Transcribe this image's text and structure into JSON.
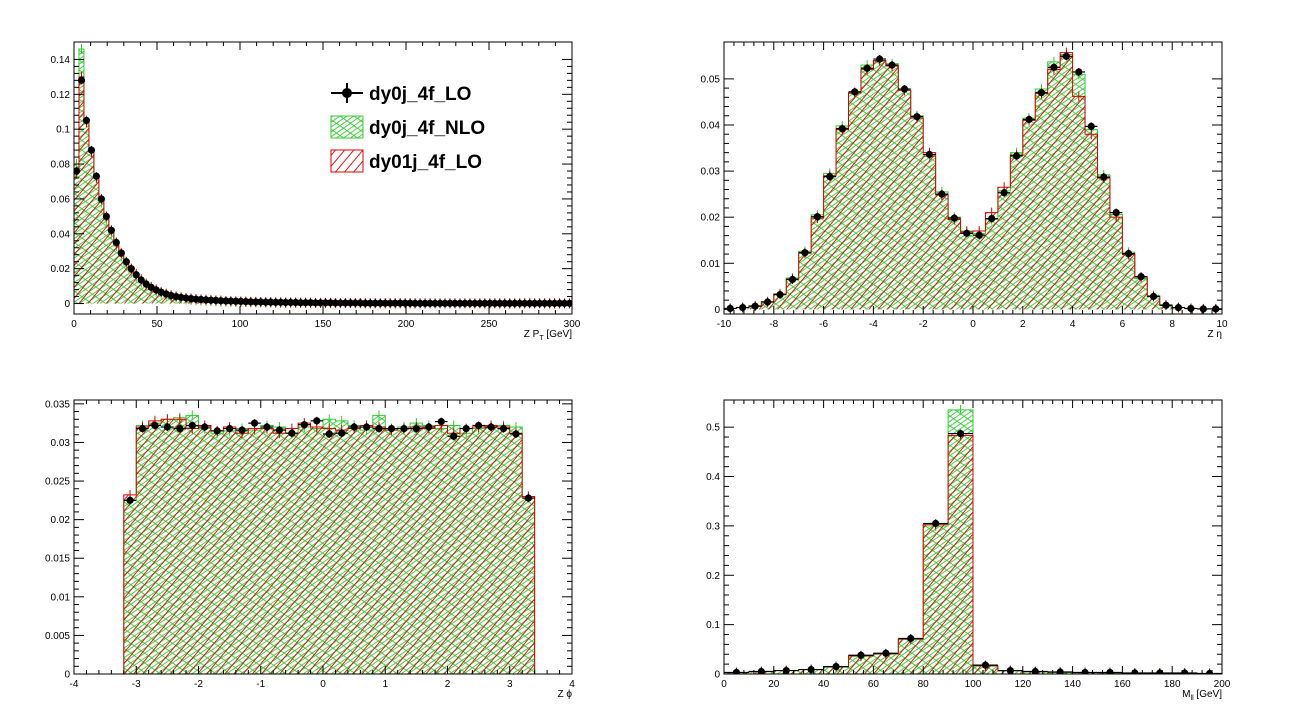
{
  "colors": {
    "lo": "#000000",
    "nlo": "#33cc33",
    "lo01": "#dd0000",
    "frame": "#000000"
  },
  "legend": {
    "entries": [
      {
        "label": "dy0j_4f_LO",
        "style": "marker"
      },
      {
        "label": "dy0j_4f_NLO",
        "style": "hatch-green"
      },
      {
        "label": "dy01j_4f_LO",
        "style": "hatch-red"
      }
    ]
  },
  "chart_data": [
    {
      "type": "histogram",
      "xlabel": "Z P",
      "xlabel_sub": "T",
      "xlabel_unit": " [GeV]",
      "xlim": [
        0,
        300
      ],
      "ylim": [
        -0.006,
        0.15
      ],
      "xticks": [
        0,
        50,
        100,
        150,
        200,
        250,
        300
      ],
      "yticks": [
        0,
        0.02,
        0.04,
        0.06,
        0.08,
        0.1,
        0.12,
        0.14
      ],
      "bin_edges_start": 0,
      "bin_width": 3,
      "series": [
        {
          "name": "dy0j_4f_LO",
          "values": [
            0.076,
            0.128,
            0.105,
            0.088,
            0.073,
            0.06,
            0.05,
            0.042,
            0.035,
            0.029,
            0.024,
            0.02,
            0.0165,
            0.0135,
            0.0112,
            0.0093,
            0.0078,
            0.0065,
            0.0055,
            0.0046,
            0.004,
            0.0035,
            0.0031,
            0.0028,
            0.0025,
            0.0023,
            0.0021,
            0.0019,
            0.0018,
            0.0016,
            0.0015,
            0.0014,
            0.0013,
            0.0012,
            0.0011,
            0.001,
            0.0009,
            0.0009,
            0.0008,
            0.0008,
            0.0007,
            0.0007,
            0.0006,
            0.0006,
            0.0006,
            0.0005,
            0.0005,
            0.0005,
            0.0004,
            0.0004,
            0.0004,
            0.0004,
            0.0003,
            0.0003,
            0.0003,
            0.0003,
            0.0003,
            0.0003,
            0.0002,
            0.0002,
            0.0002,
            0.0002,
            0.0002,
            0.0002,
            0.0002,
            0.0002,
            0.0002,
            0.0002,
            0.0001,
            0.0001,
            0.0001,
            0.0001,
            0.0001,
            0.0001,
            0.0001,
            0.0001,
            0.0001,
            0.0001,
            0.0001,
            0.0001,
            0.0001,
            0.0001,
            0.0001,
            0.0001,
            0.0001,
            0.0001,
            0.0001,
            0.0001,
            0.0001,
            0.0001,
            0.0001,
            0.0001,
            0.0001,
            0.0001,
            0.0001,
            0.0001,
            0.0001,
            0.0001,
            0.0001,
            0.0001
          ]
        },
        {
          "name": "dy0j_4f_NLO",
          "values": [
            0.08,
            0.146,
            0.105,
            0.087,
            0.072,
            0.058,
            0.048,
            0.04,
            0.033,
            0.027,
            0.022,
            0.018,
            0.015,
            0.012,
            0.01,
            0.0082,
            0.0068,
            0.0056,
            0.0047,
            0.0039,
            0.0033,
            0.0028,
            0.0024,
            0.0021,
            0.0019,
            0.0017,
            0.0015,
            0.0014,
            0.0012,
            0.0011,
            0.001,
            0.0009,
            0.0008,
            0.0008,
            0.0007,
            0.0007,
            0.0006,
            0.0006,
            0.0005,
            0.0005,
            0.0005,
            0.0004,
            0.0004,
            0.0004,
            0.0004,
            0.0003,
            0.0003,
            0.0003,
            0.0003,
            0.0003,
            0.0002,
            0.0002,
            0.0002,
            0.0002,
            0.0002,
            0.0002,
            0.0002,
            0.0002,
            0.0001,
            0.0001,
            0.0001,
            0.0001,
            0.0001,
            0.0001,
            0.0001,
            0.0001,
            0.0001,
            0.0001,
            0.0001,
            0.0001,
            0.0001,
            0.0001,
            0.0001,
            0.0001,
            0.0001,
            0.0001,
            0.0001,
            0.0001,
            0.0001,
            0.0001,
            0.0001,
            0.0001,
            0.0001,
            0.0001,
            0.0001,
            0.0001,
            0.0001,
            0.0001,
            0.0001,
            0.0001,
            0.0001,
            0.0001,
            0.0001,
            0.0001,
            0.0001,
            0.0001,
            0.0001,
            0.0001,
            0.0001,
            0.0001
          ]
        },
        {
          "name": "dy01j_4f_LO",
          "values": [
            0.075,
            0.13,
            0.104,
            0.087,
            0.072,
            0.06,
            0.05,
            0.042,
            0.035,
            0.029,
            0.024,
            0.02,
            0.017,
            0.014,
            0.0115,
            0.0096,
            0.008,
            0.0067,
            0.0057,
            0.0048,
            0.0041,
            0.0036,
            0.0032,
            0.0029,
            0.0026,
            0.0024,
            0.0022,
            0.002,
            0.0018,
            0.0017,
            0.0015,
            0.0014,
            0.0013,
            0.0012,
            0.0011,
            0.001,
            0.001,
            0.0009,
            0.0008,
            0.0008,
            0.0007,
            0.0007,
            0.0006,
            0.0006,
            0.0006,
            0.0005,
            0.0005,
            0.0005,
            0.0004,
            0.0004,
            0.0004,
            0.0004,
            0.0003,
            0.0003,
            0.0003,
            0.0003,
            0.0003,
            0.0003,
            0.0002,
            0.0002,
            0.0002,
            0.0002,
            0.0002,
            0.0002,
            0.0002,
            0.0002,
            0.0002,
            0.0002,
            0.0001,
            0.0001,
            0.0001,
            0.0001,
            0.0001,
            0.0001,
            0.0001,
            0.0001,
            0.0001,
            0.0001,
            0.0001,
            0.0001,
            0.0001,
            0.0001,
            0.0001,
            0.0001,
            0.0001,
            0.0001,
            0.0001,
            0.0001,
            0.0001,
            0.0001,
            0.0001,
            0.0001,
            0.0001,
            0.0001,
            0.0001,
            0.0001,
            0.0001,
            0.0001,
            0.0001,
            0.0001
          ]
        }
      ]
    },
    {
      "type": "histogram",
      "xlabel": "Z η",
      "xlabel_sub": "",
      "xlabel_unit": "",
      "xlim": [
        -10,
        10
      ],
      "ylim": [
        -0.001,
        0.058
      ],
      "xticks": [
        -10,
        -8,
        -6,
        -4,
        -2,
        0,
        2,
        4,
        6,
        8,
        10
      ],
      "yticks": [
        0,
        0.01,
        0.02,
        0.03,
        0.04,
        0.05
      ],
      "bin_edges_start": -10,
      "bin_width": 0.5,
      "series": [
        {
          "name": "dy0j_4f_LO",
          "values": [
            0.0002,
            0.0004,
            0.0007,
            0.0016,
            0.0032,
            0.0065,
            0.0123,
            0.0201,
            0.0288,
            0.0392,
            0.0472,
            0.0523,
            0.0543,
            0.053,
            0.0478,
            0.0418,
            0.0336,
            0.025,
            0.0198,
            0.0165,
            0.0161,
            0.0197,
            0.0253,
            0.0333,
            0.0412,
            0.047,
            0.0525,
            0.0549,
            0.0515,
            0.0397,
            0.0287,
            0.021,
            0.0121,
            0.0071,
            0.0028,
            0.0009,
            0.0004,
            0.0002,
            0.0001,
            0.0001
          ]
        },
        {
          "name": "dy0j_4f_NLO",
          "values": [
            0.0002,
            0.0004,
            0.0008,
            0.0017,
            0.0034,
            0.0068,
            0.0126,
            0.0205,
            0.0295,
            0.0398,
            0.0468,
            0.053,
            0.0538,
            0.0533,
            0.0476,
            0.042,
            0.0332,
            0.0255,
            0.02,
            0.017,
            0.0165,
            0.0195,
            0.0257,
            0.034,
            0.0415,
            0.0478,
            0.0537,
            0.0553,
            0.051,
            0.039,
            0.0292,
            0.0206,
            0.0124,
            0.0067,
            0.003,
            0.001,
            0.0004,
            0.0002,
            0.0001,
            0.0001
          ]
        },
        {
          "name": "dy01j_4f_LO",
          "values": [
            0.0002,
            0.0004,
            0.0007,
            0.0016,
            0.0033,
            0.0066,
            0.0122,
            0.0198,
            0.029,
            0.039,
            0.047,
            0.052,
            0.054,
            0.0528,
            0.0475,
            0.0415,
            0.034,
            0.0248,
            0.0195,
            0.0168,
            0.017,
            0.021,
            0.0265,
            0.0335,
            0.041,
            0.0468,
            0.052,
            0.0557,
            0.0462,
            0.038,
            0.0285,
            0.02,
            0.0119,
            0.007,
            0.0028,
            0.0009,
            0.0004,
            0.0002,
            0.0001,
            0.0001
          ]
        }
      ]
    },
    {
      "type": "histogram",
      "xlabel": "Z ϕ",
      "xlabel_sub": "",
      "xlabel_unit": "",
      "xlim": [
        -4,
        4
      ],
      "ylim": [
        0,
        0.0355
      ],
      "xticks": [
        -4,
        -3,
        -2,
        -1,
        0,
        1,
        2,
        3,
        4
      ],
      "yticks": [
        0,
        0.005,
        0.01,
        0.015,
        0.02,
        0.025,
        0.03,
        0.035
      ],
      "bin_edges_start": -3.2,
      "bin_width": 0.2,
      "series": [
        {
          "name": "dy0j_4f_LO",
          "values": [
            0.0225,
            0.0318,
            0.0322,
            0.032,
            0.0318,
            0.0322,
            0.032,
            0.0315,
            0.0318,
            0.0316,
            0.0325,
            0.032,
            0.0316,
            0.0312,
            0.0323,
            0.0328,
            0.0311,
            0.0312,
            0.032,
            0.032,
            0.0318,
            0.0318,
            0.0318,
            0.0318,
            0.032,
            0.0327,
            0.0308,
            0.0318,
            0.0322,
            0.032,
            0.0318,
            0.0311,
            0.0228
          ]
        },
        {
          "name": "dy0j_4f_NLO",
          "values": [
            0.0225,
            0.0322,
            0.0325,
            0.033,
            0.0332,
            0.0335,
            0.0318,
            0.0312,
            0.0315,
            0.0318,
            0.0316,
            0.0322,
            0.032,
            0.0312,
            0.032,
            0.0318,
            0.033,
            0.0328,
            0.0322,
            0.0316,
            0.0335,
            0.0318,
            0.032,
            0.0325,
            0.0322,
            0.0318,
            0.0322,
            0.0312,
            0.0318,
            0.032,
            0.0322,
            0.032,
            0.023
          ]
        },
        {
          "name": "dy01j_4f_LO",
          "values": [
            0.0232,
            0.032,
            0.0328,
            0.033,
            0.033,
            0.0318,
            0.0322,
            0.0315,
            0.032,
            0.0312,
            0.0318,
            0.0318,
            0.0312,
            0.0318,
            0.0325,
            0.032,
            0.0318,
            0.0316,
            0.0318,
            0.0322,
            0.032,
            0.0316,
            0.0318,
            0.032,
            0.0318,
            0.0322,
            0.0312,
            0.0318,
            0.032,
            0.0322,
            0.032,
            0.0312,
            0.023
          ]
        }
      ]
    },
    {
      "type": "histogram",
      "xlabel": "M",
      "xlabel_sub": "ll",
      "xlabel_unit": " [GeV]",
      "xlim": [
        0,
        200
      ],
      "ylim": [
        0,
        0.555
      ],
      "xticks": [
        0,
        20,
        40,
        60,
        80,
        100,
        120,
        140,
        160,
        180,
        200
      ],
      "yticks": [
        0,
        0.1,
        0.2,
        0.3,
        0.4,
        0.5
      ],
      "bin_edges_start": 0,
      "bin_width": 10,
      "series": [
        {
          "name": "dy0j_4f_LO",
          "values": [
            0.003,
            0.005,
            0.007,
            0.009,
            0.015,
            0.038,
            0.042,
            0.072,
            0.305,
            0.487,
            0.018,
            0.007,
            0.005,
            0.004,
            0.003,
            0.003,
            0.002,
            0.002,
            0.002,
            0.001
          ]
        },
        {
          "name": "dy0j_4f_NLO",
          "values": [
            0.003,
            0.005,
            0.007,
            0.009,
            0.014,
            0.036,
            0.04,
            0.07,
            0.3,
            0.535,
            0.016,
            0.006,
            0.004,
            0.003,
            0.003,
            0.002,
            0.002,
            0.002,
            0.001,
            0.001
          ]
        },
        {
          "name": "dy01j_4f_LO",
          "values": [
            0.003,
            0.005,
            0.007,
            0.009,
            0.015,
            0.037,
            0.041,
            0.071,
            0.303,
            0.483,
            0.017,
            0.007,
            0.005,
            0.004,
            0.003,
            0.003,
            0.002,
            0.002,
            0.002,
            0.001
          ]
        }
      ]
    }
  ]
}
